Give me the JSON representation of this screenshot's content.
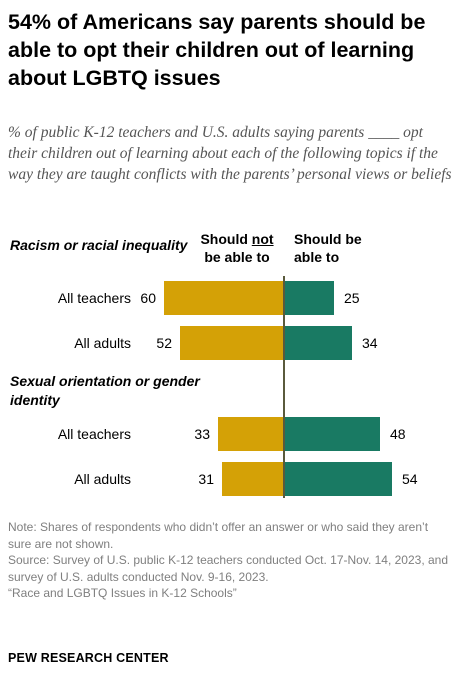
{
  "title": "54% of Americans say parents should be able to opt their children out of learning about LGBTQ issues",
  "subtitle": "% of public K-12 teachers and U.S. adults saying parents ____ opt their children out of learning about each of the following topics if the way they are taught conflicts with the parents’ personal views or beliefs",
  "columns": {
    "should_not_pre": "Should ",
    "should_not_underlined": "not",
    "should_not_post": "be able to",
    "should_line1": "Should be",
    "should_line2": "able to"
  },
  "colors": {
    "should_not": "#d4a106",
    "should": "#197a63"
  },
  "chart_data": {
    "type": "bar",
    "orientation": "horizontal-diverging",
    "groups": [
      {
        "label": "Racism or racial inequality",
        "rows": [
          {
            "label": "All teachers",
            "should_not": 60,
            "should": 25
          },
          {
            "label": "All adults",
            "should_not": 52,
            "should": 34
          }
        ]
      },
      {
        "label": "Sexual orientation or gender identity",
        "rows": [
          {
            "label": "All teachers",
            "should_not": 33,
            "should": 48
          },
          {
            "label": "All adults",
            "should_not": 31,
            "should": 54
          }
        ]
      }
    ],
    "series": [
      {
        "name": "Should not be able to",
        "key": "should_not"
      },
      {
        "name": "Should be able to",
        "key": "should"
      }
    ]
  },
  "notes": {
    "note": "Note: Shares of respondents who didn’t offer an answer or who said they aren’t sure are not shown.",
    "source": "Source: Survey of U.S. public K-12 teachers conducted Oct. 17-Nov. 14, 2023, and survey of U.S. adults conducted Nov. 9-16, 2023.",
    "report": "“Race and LGBTQ Issues in K-12 Schools”",
    "org": "PEW RESEARCH CENTER"
  }
}
